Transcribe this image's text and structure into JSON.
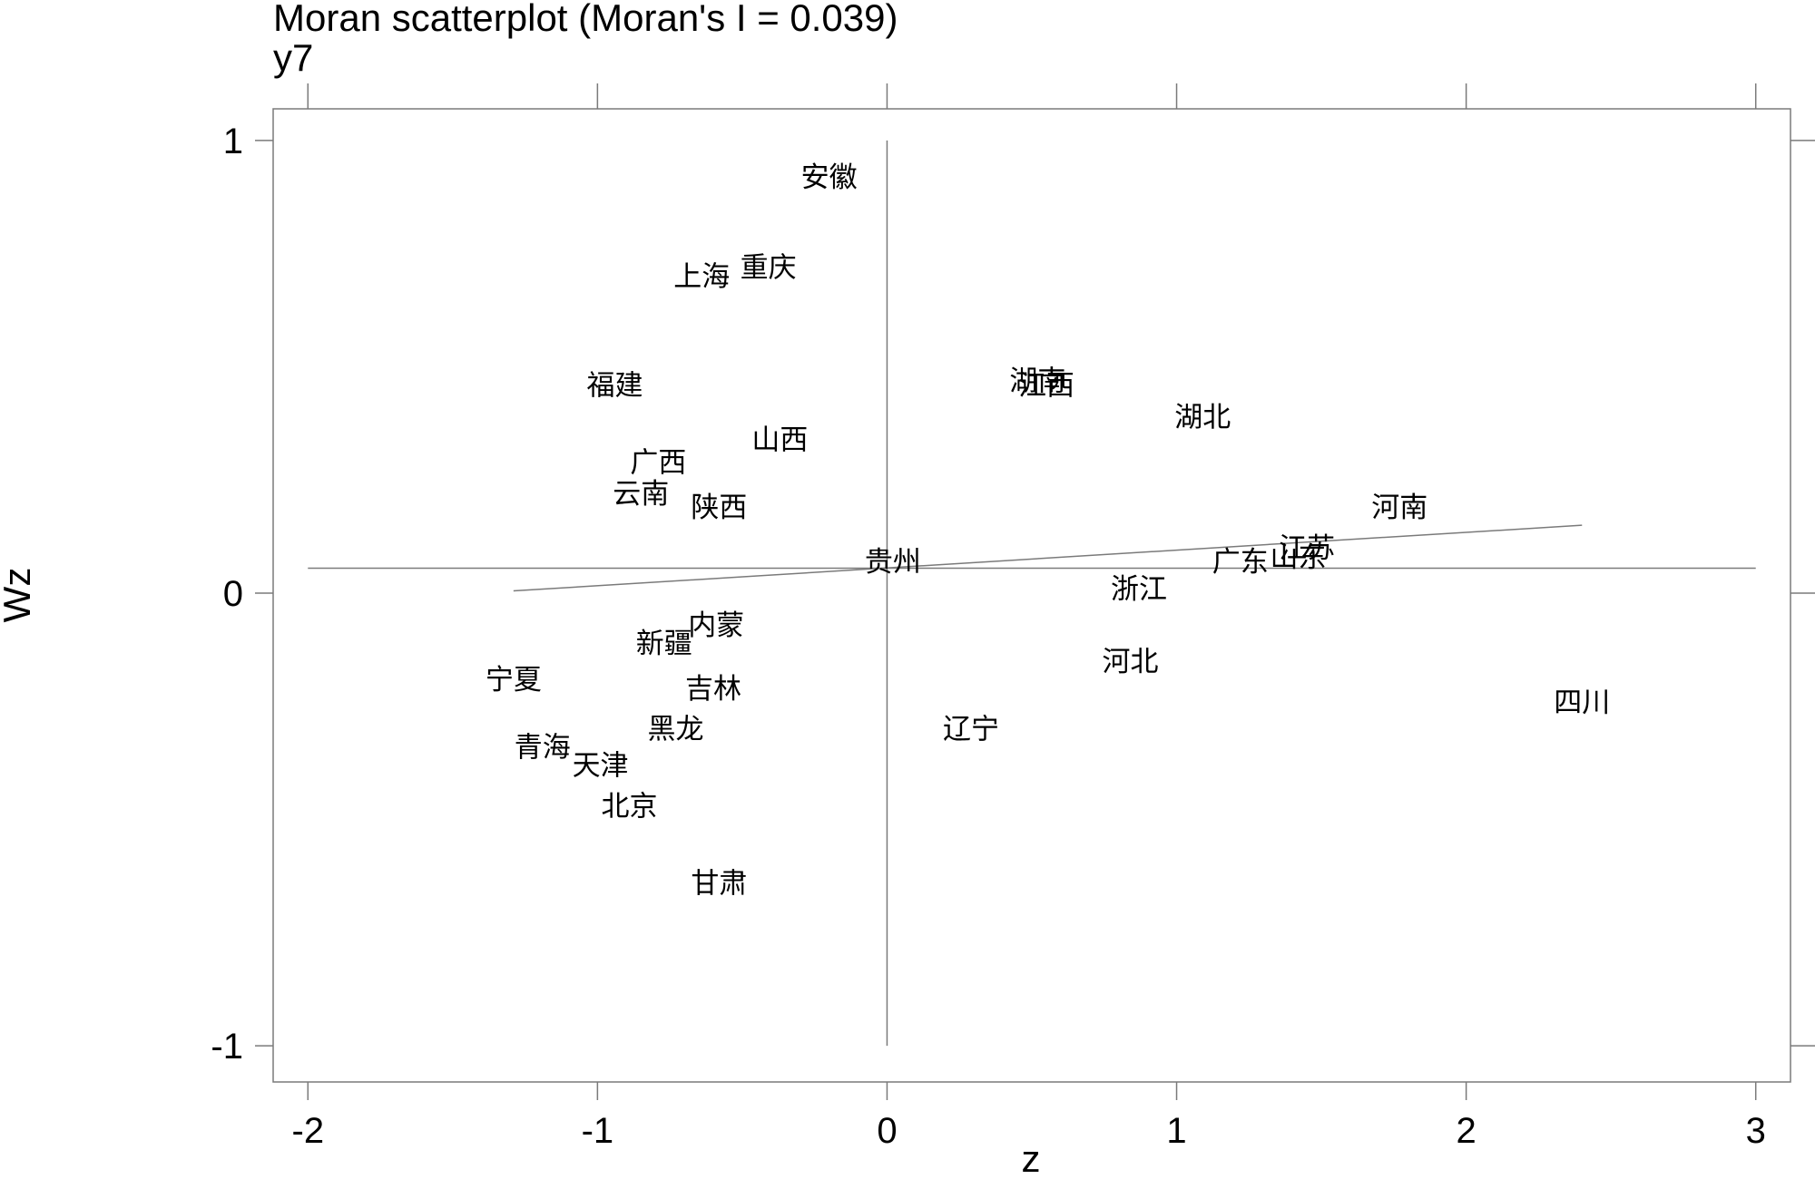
{
  "chart_data": {
    "type": "scatter",
    "title": "Moran scatterplot (Moran's I = 0.039)",
    "subtitle": "y7",
    "xlabel": "z",
    "ylabel": "Wz",
    "xlim": [
      -2.12,
      3.12
    ],
    "ylim": [
      -1.08,
      1.07
    ],
    "xticks": [
      -2,
      -1,
      0,
      1,
      2,
      3
    ],
    "yticks": [
      -1,
      0,
      1
    ],
    "mean_z": 0,
    "mean_wz": 0.055,
    "grid": false,
    "points": [
      {
        "label": "安徽",
        "x": -0.2,
        "y": 0.92
      },
      {
        "label": "上海",
        "x": -0.64,
        "y": 0.7
      },
      {
        "label": "重庆",
        "x": -0.41,
        "y": 0.72
      },
      {
        "label": "福建",
        "x": -0.94,
        "y": 0.46
      },
      {
        "label": "湖南",
        "x": 0.52,
        "y": 0.47
      },
      {
        "label": "江西",
        "x": 0.55,
        "y": 0.46
      },
      {
        "label": "湖北",
        "x": 1.09,
        "y": 0.39
      },
      {
        "label": "山西",
        "x": -0.37,
        "y": 0.34
      },
      {
        "label": "广西",
        "x": -0.79,
        "y": 0.29
      },
      {
        "label": "云南",
        "x": -0.85,
        "y": 0.22
      },
      {
        "label": "陕西",
        "x": -0.58,
        "y": 0.19
      },
      {
        "label": "河南",
        "x": 1.77,
        "y": 0.19
      },
      {
        "label": "江苏",
        "x": 1.45,
        "y": 0.1
      },
      {
        "label": "山东",
        "x": 1.42,
        "y": 0.08
      },
      {
        "label": "广东",
        "x": 1.22,
        "y": 0.07
      },
      {
        "label": "贵州",
        "x": 0.02,
        "y": 0.07
      },
      {
        "label": "浙江",
        "x": 0.87,
        "y": 0.01
      },
      {
        "label": "内蒙",
        "x": -0.59,
        "y": -0.07
      },
      {
        "label": "新疆",
        "x": -0.77,
        "y": -0.11
      },
      {
        "label": "宁夏",
        "x": -1.29,
        "y": -0.19
      },
      {
        "label": "吉林",
        "x": -0.6,
        "y": -0.21
      },
      {
        "label": "河北",
        "x": 0.84,
        "y": -0.15
      },
      {
        "label": "四川",
        "x": 2.4,
        "y": -0.24
      },
      {
        "label": "黑龙",
        "x": -0.73,
        "y": -0.3
      },
      {
        "label": "辽宁",
        "x": 0.29,
        "y": -0.3
      },
      {
        "label": "青海",
        "x": -1.19,
        "y": -0.34
      },
      {
        "label": "天津",
        "x": -0.99,
        "y": -0.38
      },
      {
        "label": "北京",
        "x": -0.89,
        "y": -0.47
      },
      {
        "label": "甘肃",
        "x": -0.58,
        "y": -0.64
      }
    ],
    "fit_line": {
      "x": [
        -1.29,
        2.4
      ],
      "y": [
        0.005,
        0.15
      ]
    }
  }
}
